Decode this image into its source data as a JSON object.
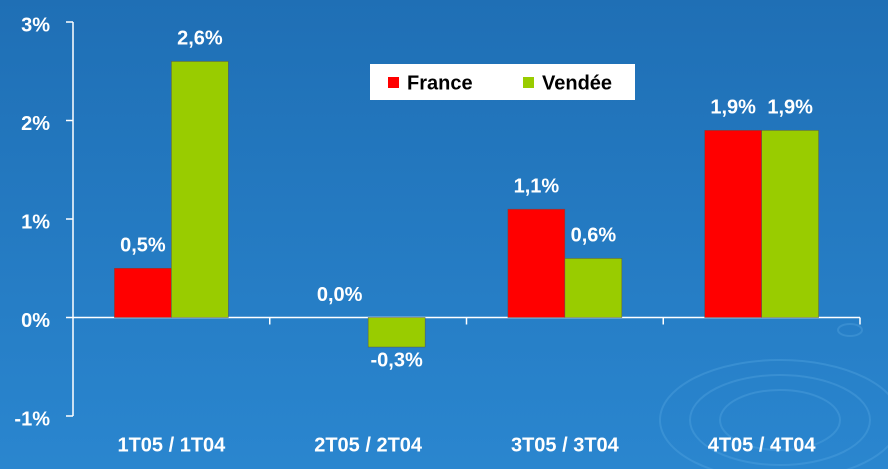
{
  "chart_data": {
    "type": "bar",
    "categories": [
      "1T05 / 1T04",
      "2T05 / 2T04",
      "3T05 / 3T04",
      "4T05 / 4T04"
    ],
    "series": [
      {
        "name": "France",
        "color": "#ff0000",
        "values": [
          0.5,
          0.0,
          1.1,
          1.9
        ],
        "value_labels": [
          "0,5%",
          "0,0%",
          "1,1%",
          "1,9%"
        ]
      },
      {
        "name": "Vendée",
        "color": "#99cc00",
        "values": [
          2.6,
          -0.3,
          0.6,
          1.9
        ],
        "value_labels": [
          "2,6%",
          "-0,3%",
          "0,6%",
          "1,9%"
        ]
      }
    ],
    "ylim": [
      -1,
      3
    ],
    "yticks": [
      {
        "value": -1,
        "label": "-1%"
      },
      {
        "value": 0,
        "label": "0%"
      },
      {
        "value": 1,
        "label": "1%"
      },
      {
        "value": 2,
        "label": "2%"
      },
      {
        "value": 3,
        "label": "3%"
      }
    ],
    "legend": "top"
  }
}
